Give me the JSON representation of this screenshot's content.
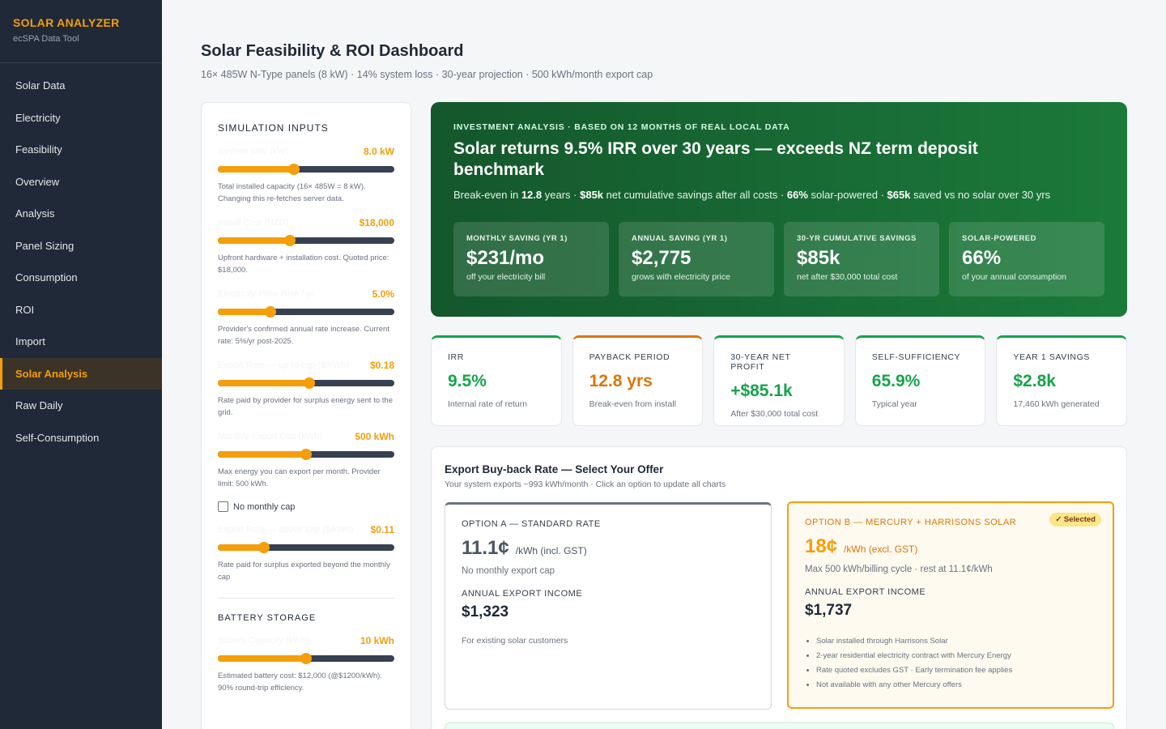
{
  "sidebar": {
    "brand_title": "SOLAR ANALYZER",
    "brand_sub": "ecSPA Data Tool",
    "items": [
      "Solar Data",
      "Electricity",
      "Feasibility",
      "Overview",
      "Analysis",
      "Panel Sizing",
      "Consumption",
      "ROI",
      "Import",
      "Solar Analysis",
      "Raw Daily",
      "Self-Consumption"
    ],
    "active": "Solar Analysis"
  },
  "header": {
    "title": "Solar Feasibility & ROI Dashboard",
    "subtitle": "16× 485W N-Type panels (8 kW) · 14% system loss · 30-year projection · 500 kWh/month export cap"
  },
  "inputs": {
    "title": "SIMULATION INPUTS",
    "fields": [
      {
        "label": "System Size (kW)",
        "value": "8.0 kW",
        "level": 0.43,
        "help": "Total installed capacity (16× 485W = 8 kW). Changing this re-fetches server data."
      },
      {
        "label": "Install Cost (NZD)",
        "value": "$18,000",
        "level": 0.41,
        "help": "Upfront hardware + installation cost. Quoted price: $18,000."
      },
      {
        "label": "Electricity Price Rise / yr",
        "value": "5.0%",
        "level": 0.3,
        "help": "Provider's confirmed annual rate increase. Current rate: 5%/yr post-2025."
      },
      {
        "label": "Export Rate — up to cap ($/kWh)",
        "value": "$0.18",
        "level": 0.52,
        "help": "Rate paid by provider for surplus energy sent to the grid."
      },
      {
        "label": "Monthly Export Cap (kWh)",
        "value": "500 kWh",
        "level": 0.5,
        "help": "Max energy you can export per month. Provider limit: 500 kWh."
      },
      {
        "label": "Export Rate — above cap ($/kWh)",
        "value": "$0.11",
        "level": 0.26,
        "help": "Rate paid for surplus exported beyond the monthly cap"
      }
    ],
    "no_cap_label": "No monthly cap",
    "battery_title": "BATTERY STORAGE",
    "battery": {
      "label": "Battery Capacity (kWh)",
      "value": "10 kWh",
      "level": 0.5,
      "help": "Estimated battery cost: $12,000 (@$1200/kWh). 90% round-trip efficiency."
    }
  },
  "hero": {
    "kicker": "INVESTMENT ANALYSIS · BASED ON 12 MONTHS OF REAL LOCAL DATA",
    "title": "Solar returns 9.5% IRR over 30 years — exceeds NZ term deposit benchmark",
    "sub_parts": {
      "p1": "Break-even in ",
      "b1": "12.8",
      "p2": " years · ",
      "b2": "$85k",
      "p3": " net cumulative savings after all costs · ",
      "b3": "66%",
      "p4": " solar-powered · ",
      "b4": "$65k",
      "p5": " saved vs no solar over 30 yrs"
    },
    "cards": [
      {
        "label": "MONTHLY SAVING (YR 1)",
        "value": "$231/mo",
        "sub": "off your electricity bill"
      },
      {
        "label": "ANNUAL SAVING (YR 1)",
        "value": "$2,775",
        "sub": "grows with electricity price"
      },
      {
        "label": "30-YR CUMULATIVE SAVINGS",
        "value": "$85k",
        "sub": "net after $30,000 total cost"
      },
      {
        "label": "SOLAR-POWERED",
        "value": "66%",
        "sub": "of your annual consumption"
      }
    ]
  },
  "kpis": [
    {
      "label": "IRR",
      "value": "9.5%",
      "sub": "Internal rate of return"
    },
    {
      "label": "PAYBACK PERIOD",
      "value": "12.8 yrs",
      "sub": "Break-even from install"
    },
    {
      "label": "30-YEAR NET PROFIT",
      "value": "+$85.1k",
      "sub": "After $30,000 total cost"
    },
    {
      "label": "SELF-SUFFICIENCY",
      "value": "65.9%",
      "sub": "Typical year"
    },
    {
      "label": "YEAR 1 SAVINGS",
      "value": "$2.8k",
      "sub": "17,460 kWh generated"
    }
  ],
  "export": {
    "title": "Export Buy-back Rate — Select Your Offer",
    "subtitle": "Your system exports ~993 kWh/month · Click an option to update all charts",
    "option_a": {
      "label": "OPTION A — STANDARD RATE",
      "rate": "11.1¢",
      "unit": "/kWh (incl. GST)",
      "note": "No monthly export cap",
      "income_label": "ANNUAL EXPORT INCOME",
      "income": "$1,323",
      "small": "For existing solar customers"
    },
    "option_b": {
      "label": "OPTION B — MERCURY + HARRISONS SOLAR",
      "badge": "✓ Selected",
      "rate": "18¢",
      "unit": "/kWh (excl. GST)",
      "note": "Max 500 kWh/billing cycle · rest at 11.1¢/kWh",
      "income_label": "ANNUAL EXPORT INCOME",
      "income": "$1,737",
      "bullets": [
        "Solar installed through Harrisons Solar",
        "2-year residential electricity contract with Mercury Energy",
        "Rate quoted excludes GST · Early termination fee applies",
        "Not available with any other Mercury offers"
      ]
    }
  }
}
